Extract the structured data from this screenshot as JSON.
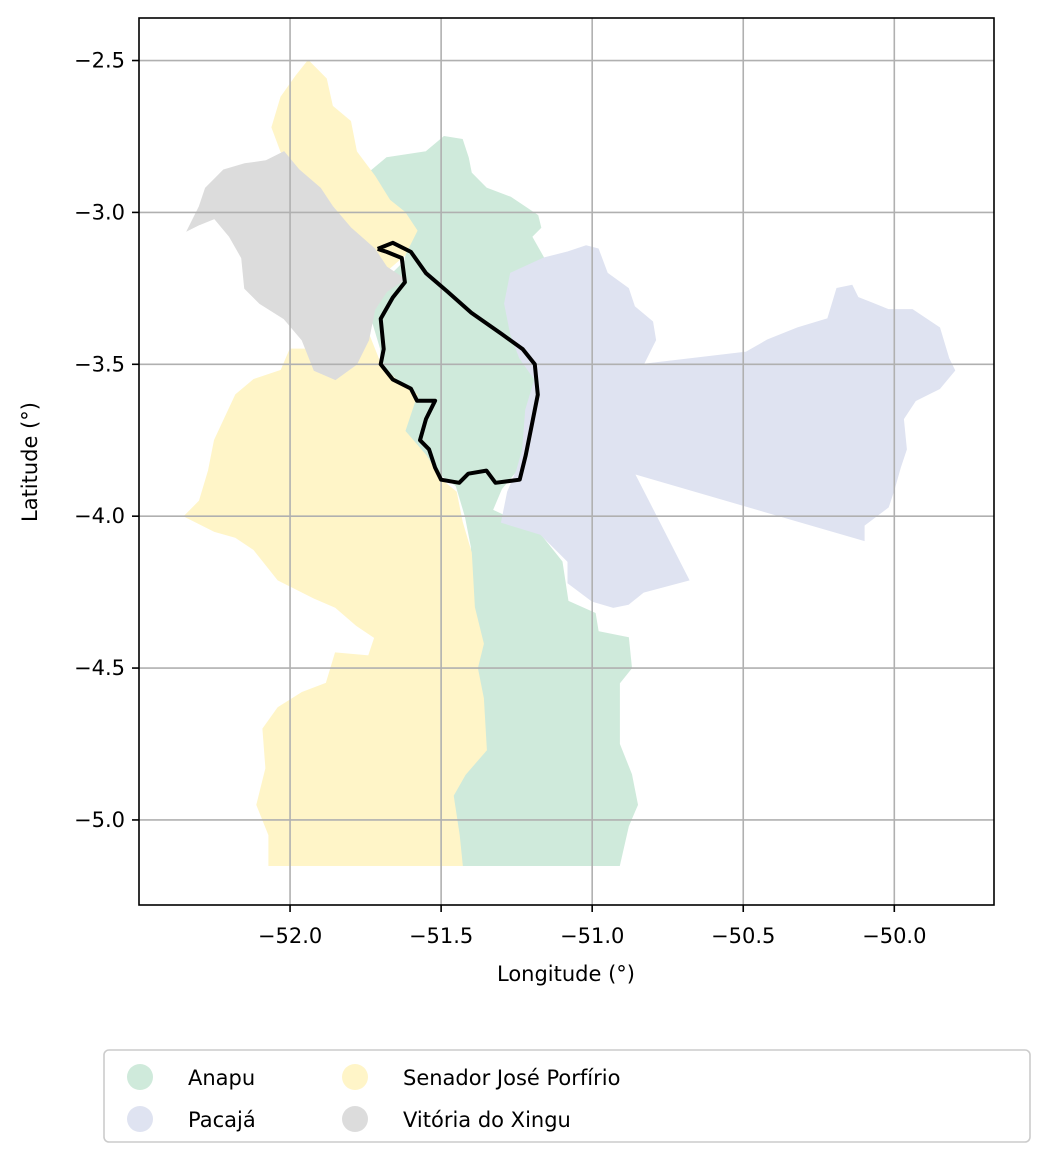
{
  "chart_data": {
    "type": "map",
    "xlabel": "Longitude (°)",
    "ylabel": "Latitude (°)",
    "xlim": [
      -52.5,
      -49.67
    ],
    "ylim": [
      -5.28,
      -2.36
    ],
    "x_ticks": [
      -52.0,
      -51.5,
      -51.0,
      -50.5,
      -50.0
    ],
    "x_tick_labels": [
      "−52.0",
      "−51.5",
      "−51.0",
      "−50.5",
      "−50.0"
    ],
    "y_ticks": [
      -2.5,
      -3.0,
      -3.5,
      -4.0,
      -4.5,
      -5.0
    ],
    "y_tick_labels": [
      "−2.5",
      "−3.0",
      "−3.5",
      "−4.0",
      "−4.5",
      "−5.0"
    ],
    "grid": true,
    "legend_position": "bottom-center",
    "legend_columns": 3,
    "series": [
      {
        "name": "Anapu",
        "color": "#cfeadb",
        "polygon": [
          [
            -51.74,
            -2.87
          ],
          [
            -51.68,
            -2.82
          ],
          [
            -51.55,
            -2.8
          ],
          [
            -51.49,
            -2.75
          ],
          [
            -51.43,
            -2.76
          ],
          [
            -51.41,
            -2.82
          ],
          [
            -51.4,
            -2.87
          ],
          [
            -51.35,
            -2.92
          ],
          [
            -51.27,
            -2.95
          ],
          [
            -51.18,
            -3.01
          ],
          [
            -51.17,
            -3.05
          ],
          [
            -51.2,
            -3.08
          ],
          [
            -51.16,
            -3.15
          ],
          [
            -51.27,
            -3.2
          ],
          [
            -51.29,
            -3.3
          ],
          [
            -51.27,
            -3.4
          ],
          [
            -51.24,
            -3.48
          ],
          [
            -51.19,
            -3.55
          ],
          [
            -51.22,
            -3.65
          ],
          [
            -51.23,
            -3.78
          ],
          [
            -51.25,
            -3.85
          ],
          [
            -51.3,
            -3.91
          ],
          [
            -51.33,
            -3.98
          ],
          [
            -51.18,
            -4.05
          ],
          [
            -51.1,
            -4.15
          ],
          [
            -51.08,
            -4.28
          ],
          [
            -50.99,
            -4.32
          ],
          [
            -50.98,
            -4.38
          ],
          [
            -50.88,
            -4.4
          ],
          [
            -50.87,
            -4.5
          ],
          [
            -50.91,
            -4.55
          ],
          [
            -50.91,
            -4.75
          ],
          [
            -50.87,
            -4.85
          ],
          [
            -50.85,
            -4.95
          ],
          [
            -50.88,
            -5.02
          ],
          [
            -50.91,
            -5.15
          ],
          [
            -51.43,
            -5.15
          ],
          [
            -51.45,
            -5.05
          ],
          [
            -51.49,
            -4.97
          ],
          [
            -51.46,
            -4.9
          ],
          [
            -51.35,
            -4.77
          ],
          [
            -51.36,
            -4.6
          ],
          [
            -51.38,
            -4.5
          ],
          [
            -51.36,
            -4.42
          ],
          [
            -51.39,
            -4.3
          ],
          [
            -51.4,
            -4.1
          ],
          [
            -51.42,
            -4.0
          ],
          [
            -51.45,
            -3.9
          ],
          [
            -51.52,
            -3.85
          ],
          [
            -51.6,
            -3.78
          ],
          [
            -51.62,
            -3.72
          ],
          [
            -51.58,
            -3.6
          ],
          [
            -51.65,
            -3.55
          ],
          [
            -51.7,
            -3.52
          ],
          [
            -51.7,
            -3.45
          ],
          [
            -51.73,
            -3.35
          ],
          [
            -51.72,
            -3.28
          ],
          [
            -51.68,
            -3.22
          ],
          [
            -51.62,
            -3.16
          ],
          [
            -51.6,
            -3.05
          ],
          [
            -51.67,
            -3.0
          ],
          [
            -51.74,
            -2.94
          ]
        ]
      },
      {
        "name": "Pacajá",
        "color": "#dfe3f1",
        "polygon": [
          [
            -51.16,
            -3.15
          ],
          [
            -51.08,
            -3.13
          ],
          [
            -51.02,
            -3.11
          ],
          [
            -50.98,
            -3.12
          ],
          [
            -50.95,
            -3.2
          ],
          [
            -50.88,
            -3.25
          ],
          [
            -50.86,
            -3.31
          ],
          [
            -50.8,
            -3.36
          ],
          [
            -50.79,
            -3.42
          ],
          [
            -50.83,
            -3.5
          ],
          [
            -50.49,
            -3.46
          ],
          [
            -50.42,
            -3.42
          ],
          [
            -50.32,
            -3.38
          ],
          [
            -50.22,
            -3.35
          ],
          [
            -50.19,
            -3.25
          ],
          [
            -50.14,
            -3.24
          ],
          [
            -50.12,
            -3.28
          ],
          [
            -50.07,
            -3.3
          ],
          [
            -50.02,
            -3.32
          ],
          [
            -49.94,
            -3.32
          ],
          [
            -49.85,
            -3.38
          ],
          [
            -49.82,
            -3.48
          ],
          [
            -49.8,
            -3.52
          ],
          [
            -49.85,
            -3.58
          ],
          [
            -49.93,
            -3.62
          ],
          [
            -49.97,
            -3.68
          ],
          [
            -49.96,
            -3.78
          ],
          [
            -49.98,
            -3.84
          ],
          [
            -50.0,
            -3.91
          ],
          [
            -50.02,
            -3.97
          ],
          [
            -50.1,
            -4.03
          ],
          [
            -50.1,
            -4.08
          ],
          [
            -50.86,
            -3.86
          ],
          [
            -50.68,
            -4.21
          ],
          [
            -50.83,
            -4.25
          ],
          [
            -50.88,
            -4.29
          ],
          [
            -50.93,
            -4.3
          ],
          [
            -51.0,
            -4.28
          ],
          [
            -51.08,
            -4.22
          ],
          [
            -51.08,
            -4.15
          ],
          [
            -51.17,
            -4.06
          ],
          [
            -51.3,
            -4.02
          ],
          [
            -51.28,
            -3.92
          ],
          [
            -51.25,
            -3.85
          ],
          [
            -51.23,
            -3.78
          ],
          [
            -51.22,
            -3.65
          ],
          [
            -51.19,
            -3.55
          ],
          [
            -51.24,
            -3.48
          ],
          [
            -51.27,
            -3.4
          ],
          [
            -51.29,
            -3.3
          ],
          [
            -51.27,
            -3.2
          ]
        ]
      },
      {
        "name": "Senador José Porfírio",
        "color": "#fff5c8",
        "polygon": [
          [
            -51.94,
            -2.5
          ],
          [
            -51.88,
            -2.56
          ],
          [
            -51.86,
            -2.65
          ],
          [
            -51.8,
            -2.7
          ],
          [
            -51.78,
            -2.8
          ],
          [
            -51.72,
            -2.88
          ],
          [
            -51.67,
            -2.96
          ],
          [
            -51.62,
            -3.0
          ],
          [
            -51.58,
            -3.06
          ],
          [
            -51.62,
            -3.14
          ],
          [
            -51.69,
            -3.2
          ],
          [
            -51.72,
            -3.28
          ],
          [
            -51.74,
            -3.4
          ],
          [
            -51.7,
            -3.5
          ],
          [
            -51.65,
            -3.55
          ],
          [
            -51.58,
            -3.6
          ],
          [
            -51.62,
            -3.72
          ],
          [
            -51.55,
            -3.8
          ],
          [
            -51.5,
            -3.88
          ],
          [
            -51.45,
            -3.92
          ],
          [
            -51.43,
            -4.02
          ],
          [
            -51.4,
            -4.12
          ],
          [
            -51.39,
            -4.3
          ],
          [
            -51.36,
            -4.42
          ],
          [
            -51.38,
            -4.5
          ],
          [
            -51.36,
            -4.6
          ],
          [
            -51.35,
            -4.77
          ],
          [
            -51.42,
            -4.85
          ],
          [
            -51.46,
            -4.92
          ],
          [
            -51.44,
            -5.05
          ],
          [
            -51.43,
            -5.15
          ],
          [
            -52.07,
            -5.15
          ],
          [
            -52.07,
            -5.05
          ],
          [
            -52.11,
            -4.95
          ],
          [
            -52.08,
            -4.83
          ],
          [
            -52.09,
            -4.7
          ],
          [
            -52.04,
            -4.63
          ],
          [
            -51.96,
            -4.58
          ],
          [
            -51.88,
            -4.55
          ],
          [
            -51.85,
            -4.45
          ],
          [
            -51.74,
            -4.46
          ],
          [
            -51.72,
            -4.4
          ],
          [
            -51.78,
            -4.36
          ],
          [
            -51.85,
            -4.3
          ],
          [
            -51.92,
            -4.27
          ],
          [
            -52.04,
            -4.21
          ],
          [
            -52.12,
            -4.11
          ],
          [
            -52.18,
            -4.07
          ],
          [
            -52.25,
            -4.05
          ],
          [
            -52.35,
            -4.0
          ],
          [
            -52.3,
            -3.95
          ],
          [
            -52.27,
            -3.85
          ],
          [
            -52.25,
            -3.75
          ],
          [
            -52.18,
            -3.6
          ],
          [
            -52.12,
            -3.55
          ],
          [
            -52.03,
            -3.52
          ],
          [
            -52.0,
            -3.45
          ],
          [
            -51.9,
            -3.45
          ],
          [
            -51.85,
            -3.38
          ],
          [
            -51.75,
            -3.22
          ],
          [
            -51.72,
            -3.12
          ],
          [
            -51.8,
            -3.05
          ],
          [
            -51.9,
            -3.0
          ],
          [
            -51.95,
            -2.95
          ],
          [
            -51.97,
            -2.86
          ],
          [
            -52.03,
            -2.8
          ],
          [
            -52.06,
            -2.72
          ],
          [
            -52.03,
            -2.62
          ],
          [
            -51.98,
            -2.55
          ]
        ]
      },
      {
        "name": "Vitória do Xingu",
        "color": "#dcdcdc",
        "polygon": [
          [
            -52.34,
            -3.06
          ],
          [
            -52.3,
            -2.98
          ],
          [
            -52.28,
            -2.92
          ],
          [
            -52.22,
            -2.86
          ],
          [
            -52.15,
            -2.84
          ],
          [
            -52.08,
            -2.83
          ],
          [
            -52.02,
            -2.8
          ],
          [
            -51.97,
            -2.86
          ],
          [
            -51.9,
            -2.92
          ],
          [
            -51.86,
            -2.98
          ],
          [
            -51.8,
            -3.05
          ],
          [
            -51.72,
            -3.12
          ],
          [
            -51.68,
            -3.18
          ],
          [
            -51.62,
            -3.22
          ],
          [
            -51.68,
            -3.26
          ],
          [
            -51.72,
            -3.32
          ],
          [
            -51.74,
            -3.42
          ],
          [
            -51.78,
            -3.5
          ],
          [
            -51.85,
            -3.55
          ],
          [
            -51.92,
            -3.52
          ],
          [
            -51.96,
            -3.42
          ],
          [
            -52.02,
            -3.35
          ],
          [
            -52.1,
            -3.3
          ],
          [
            -52.15,
            -3.25
          ],
          [
            -52.16,
            -3.15
          ],
          [
            -52.2,
            -3.08
          ],
          [
            -52.25,
            -3.02
          ],
          [
            -52.3,
            -3.04
          ]
        ]
      }
    ],
    "outline": {
      "color": "#000000",
      "path": [
        [
          -51.71,
          -3.12
        ],
        [
          -51.66,
          -3.1
        ],
        [
          -51.6,
          -3.13
        ],
        [
          -51.55,
          -3.2
        ],
        [
          -51.48,
          -3.26
        ],
        [
          -51.4,
          -3.33
        ],
        [
          -51.3,
          -3.4
        ],
        [
          -51.23,
          -3.45
        ],
        [
          -51.19,
          -3.5
        ],
        [
          -51.18,
          -3.6
        ],
        [
          -51.2,
          -3.7
        ],
        [
          -51.22,
          -3.8
        ],
        [
          -51.24,
          -3.88
        ],
        [
          -51.32,
          -3.89
        ],
        [
          -51.35,
          -3.85
        ],
        [
          -51.41,
          -3.86
        ],
        [
          -51.44,
          -3.89
        ],
        [
          -51.5,
          -3.88
        ],
        [
          -51.52,
          -3.84
        ],
        [
          -51.54,
          -3.78
        ],
        [
          -51.57,
          -3.75
        ],
        [
          -51.55,
          -3.68
        ],
        [
          -51.52,
          -3.62
        ],
        [
          -51.58,
          -3.62
        ],
        [
          -51.6,
          -3.58
        ],
        [
          -51.66,
          -3.55
        ],
        [
          -51.7,
          -3.5
        ],
        [
          -51.69,
          -3.45
        ],
        [
          -51.7,
          -3.35
        ],
        [
          -51.66,
          -3.28
        ],
        [
          -51.62,
          -3.23
        ],
        [
          -51.63,
          -3.15
        ],
        [
          -51.68,
          -3.13
        ],
        [
          -51.71,
          -3.12
        ]
      ]
    }
  }
}
